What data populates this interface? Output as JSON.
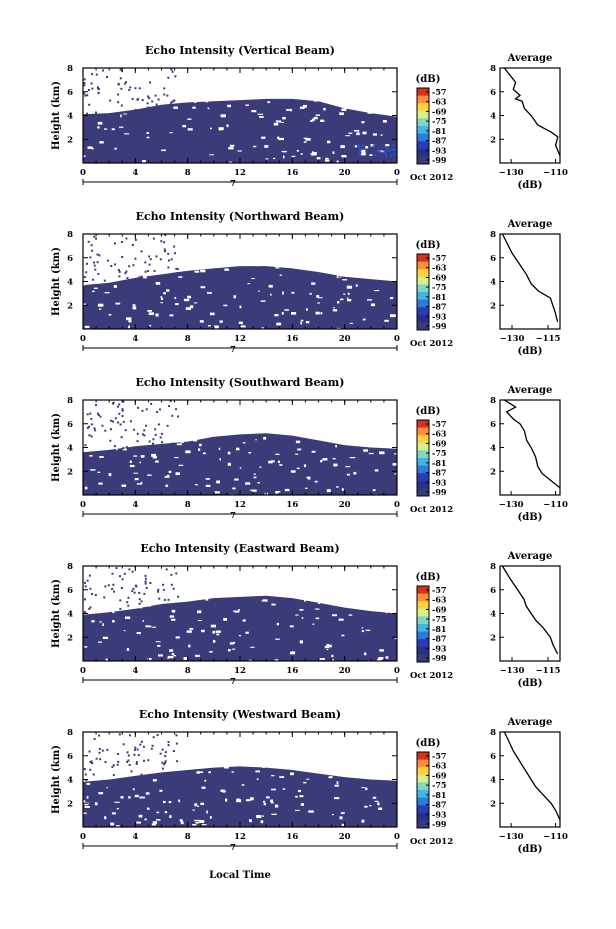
{
  "figure": {
    "xlabel_bottom": "Local Time",
    "date_label": "Oct 2012",
    "day_label": "7",
    "colorbar_unit": "(dB)",
    "colorbar_ticks": [
      "-57",
      "-63",
      "-69",
      "-75",
      "-81",
      "-87",
      "-93",
      "-99"
    ],
    "colorbar_colors": [
      "#d7301f",
      "#fc8d3c",
      "#fed23f",
      "#d9ef8b",
      "#7fd7c4",
      "#41b6e6",
      "#2c7bd8",
      "#2b3cb8",
      "#262f8a",
      "#3a3a78"
    ],
    "echo_fill": "#3b3b7a"
  },
  "chart_data": [
    {
      "type": "heatmap",
      "title": "Echo Intensity (Vertical Beam)",
      "ylabel": "Height (km)",
      "xlim": [
        0,
        24
      ],
      "ylim": [
        0,
        8
      ],
      "xticks": [
        "0",
        "4",
        "8",
        "12",
        "16",
        "20",
        "0"
      ],
      "yticks": [
        "2",
        "4",
        "6",
        "8"
      ],
      "echo_top_km": [
        [
          0,
          4.1
        ],
        [
          2,
          4.2
        ],
        [
          4,
          4.5
        ],
        [
          6,
          4.9
        ],
        [
          8,
          5.1
        ],
        [
          10,
          5.2
        ],
        [
          12,
          5.3
        ],
        [
          14,
          5.4
        ],
        [
          16,
          5.4
        ],
        [
          18,
          5.2
        ],
        [
          20,
          4.6
        ],
        [
          22,
          4.2
        ],
        [
          24,
          3.9
        ]
      ],
      "profile": {
        "title": "Average",
        "xlabel": "(dB)",
        "xticks": [
          "-130",
          "-110"
        ],
        "xlim": [
          -135,
          -108
        ],
        "ylim": [
          0,
          8
        ],
        "yticks": [
          "2",
          "4",
          "6",
          "8"
        ],
        "points": [
          [
            -108,
            0.6
          ],
          [
            -110,
            1.5
          ],
          [
            -109,
            2.2
          ],
          [
            -112,
            2.6
          ],
          [
            -118,
            3.2
          ],
          [
            -121,
            4.0
          ],
          [
            -124,
            4.6
          ],
          [
            -125,
            5.2
          ],
          [
            -128,
            5.4
          ],
          [
            -126,
            5.7
          ],
          [
            -129,
            6.2
          ],
          [
            -128,
            6.8
          ],
          [
            -131,
            7.5
          ],
          [
            -133,
            8.0
          ]
        ]
      }
    },
    {
      "type": "heatmap",
      "title": "Echo Intensity (Northward Beam)",
      "ylabel": "Height (km)",
      "xlim": [
        0,
        24
      ],
      "ylim": [
        0,
        8
      ],
      "xticks": [
        "0",
        "4",
        "8",
        "12",
        "16",
        "20",
        "0"
      ],
      "yticks": [
        "2",
        "4",
        "6",
        "8"
      ],
      "echo_top_km": [
        [
          0,
          3.7
        ],
        [
          2,
          3.9
        ],
        [
          4,
          4.3
        ],
        [
          6,
          4.6
        ],
        [
          8,
          4.9
        ],
        [
          10,
          5.1
        ],
        [
          12,
          5.3
        ],
        [
          14,
          5.3
        ],
        [
          16,
          5.1
        ],
        [
          18,
          4.8
        ],
        [
          20,
          4.4
        ],
        [
          22,
          4.2
        ],
        [
          24,
          4.0
        ]
      ],
      "profile": {
        "title": "Average",
        "xlabel": "(dB)",
        "xticks": [
          "-130",
          "-115"
        ],
        "xlim": [
          -135,
          -110
        ],
        "ylim": [
          0,
          8
        ],
        "yticks": [
          "2",
          "4",
          "6",
          "8"
        ],
        "points": [
          [
            -111,
            0.6
          ],
          [
            -112,
            1.4
          ],
          [
            -113,
            2.0
          ],
          [
            -114,
            2.6
          ],
          [
            -119,
            3.2
          ],
          [
            -122,
            3.8
          ],
          [
            -124,
            4.6
          ],
          [
            -126,
            5.2
          ],
          [
            -128,
            5.8
          ],
          [
            -130,
            6.4
          ],
          [
            -132,
            7.2
          ],
          [
            -134,
            8.0
          ]
        ]
      }
    },
    {
      "type": "heatmap",
      "title": "Echo Intensity (Southward Beam)",
      "ylabel": "Height (km)",
      "xlim": [
        0,
        24
      ],
      "ylim": [
        0,
        8
      ],
      "xticks": [
        "0",
        "4",
        "8",
        "12",
        "16",
        "20",
        "0"
      ],
      "yticks": [
        "2",
        "4",
        "6",
        "8"
      ],
      "echo_top_km": [
        [
          0,
          3.6
        ],
        [
          2,
          3.8
        ],
        [
          4,
          4.1
        ],
        [
          6,
          4.3
        ],
        [
          8,
          4.5
        ],
        [
          10,
          4.9
        ],
        [
          12,
          5.1
        ],
        [
          14,
          5.2
        ],
        [
          16,
          5.0
        ],
        [
          18,
          4.6
        ],
        [
          20,
          4.2
        ],
        [
          22,
          4.0
        ],
        [
          24,
          3.9
        ]
      ],
      "profile": {
        "title": "Average",
        "xlabel": "(dB)",
        "xticks": [
          "-130",
          "-110"
        ],
        "xlim": [
          -135,
          -108
        ],
        "ylim": [
          0,
          8
        ],
        "yticks": [
          "2",
          "4",
          "6",
          "8"
        ],
        "points": [
          [
            -108,
            0.6
          ],
          [
            -112,
            1.2
          ],
          [
            -116,
            1.8
          ],
          [
            -118,
            2.4
          ],
          [
            -119,
            3.2
          ],
          [
            -121,
            4.0
          ],
          [
            -123,
            4.6
          ],
          [
            -124,
            5.4
          ],
          [
            -126,
            6.0
          ],
          [
            -129,
            6.4
          ],
          [
            -132,
            7.0
          ],
          [
            -128,
            7.4
          ],
          [
            -133,
            8.0
          ]
        ]
      }
    },
    {
      "type": "heatmap",
      "title": "Echo Intensity (Eastward Beam)",
      "ylabel": "Height (km)",
      "xlim": [
        0,
        24
      ],
      "ylim": [
        0,
        8
      ],
      "xticks": [
        "0",
        "4",
        "8",
        "12",
        "16",
        "20",
        "0"
      ],
      "yticks": [
        "2",
        "4",
        "6",
        "8"
      ],
      "echo_top_km": [
        [
          0,
          3.9
        ],
        [
          2,
          4.1
        ],
        [
          4,
          4.4
        ],
        [
          6,
          4.8
        ],
        [
          8,
          5.0
        ],
        [
          10,
          5.3
        ],
        [
          12,
          5.4
        ],
        [
          14,
          5.5
        ],
        [
          16,
          5.3
        ],
        [
          18,
          4.9
        ],
        [
          20,
          4.5
        ],
        [
          22,
          4.2
        ],
        [
          24,
          4.0
        ]
      ],
      "profile": {
        "title": "Average",
        "xlabel": "(dB)",
        "xticks": [
          "-130",
          "-115"
        ],
        "xlim": [
          -135,
          -110
        ],
        "ylim": [
          0,
          8
        ],
        "yticks": [
          "2",
          "4",
          "6",
          "8"
        ],
        "points": [
          [
            -111,
            0.6
          ],
          [
            -113,
            1.4
          ],
          [
            -114,
            2.0
          ],
          [
            -117,
            2.8
          ],
          [
            -120,
            3.4
          ],
          [
            -122,
            4.0
          ],
          [
            -124,
            4.6
          ],
          [
            -125,
            5.2
          ],
          [
            -127,
            5.8
          ],
          [
            -129,
            6.4
          ],
          [
            -131,
            7.0
          ],
          [
            -134,
            8.0
          ]
        ]
      }
    },
    {
      "type": "heatmap",
      "title": "Echo Intensity (Westward Beam)",
      "ylabel": "Height (km)",
      "xlim": [
        0,
        24
      ],
      "ylim": [
        0,
        8
      ],
      "xticks": [
        "0",
        "4",
        "8",
        "12",
        "16",
        "20",
        "0"
      ],
      "yticks": [
        "2",
        "4",
        "6",
        "8"
      ],
      "echo_top_km": [
        [
          0,
          3.8
        ],
        [
          2,
          4.0
        ],
        [
          4,
          4.3
        ],
        [
          6,
          4.6
        ],
        [
          8,
          4.8
        ],
        [
          10,
          5.0
        ],
        [
          12,
          5.1
        ],
        [
          14,
          5.0
        ],
        [
          16,
          4.8
        ],
        [
          18,
          4.5
        ],
        [
          20,
          4.2
        ],
        [
          22,
          4.0
        ],
        [
          24,
          3.9
        ]
      ],
      "profile": {
        "title": "Average",
        "xlabel": "(dB)",
        "xticks": [
          "-130",
          "-110"
        ],
        "xlim": [
          -135,
          -108
        ],
        "ylim": [
          0,
          8
        ],
        "yticks": [
          "2",
          "4",
          "6",
          "8"
        ],
        "points": [
          [
            -108,
            0.6
          ],
          [
            -110,
            1.4
          ],
          [
            -112,
            2.0
          ],
          [
            -116,
            2.8
          ],
          [
            -119,
            3.4
          ],
          [
            -121,
            4.0
          ],
          [
            -123,
            4.6
          ],
          [
            -125,
            5.2
          ],
          [
            -127,
            5.8
          ],
          [
            -129,
            6.4
          ],
          [
            -131,
            7.2
          ],
          [
            -133,
            8.0
          ]
        ]
      }
    }
  ]
}
